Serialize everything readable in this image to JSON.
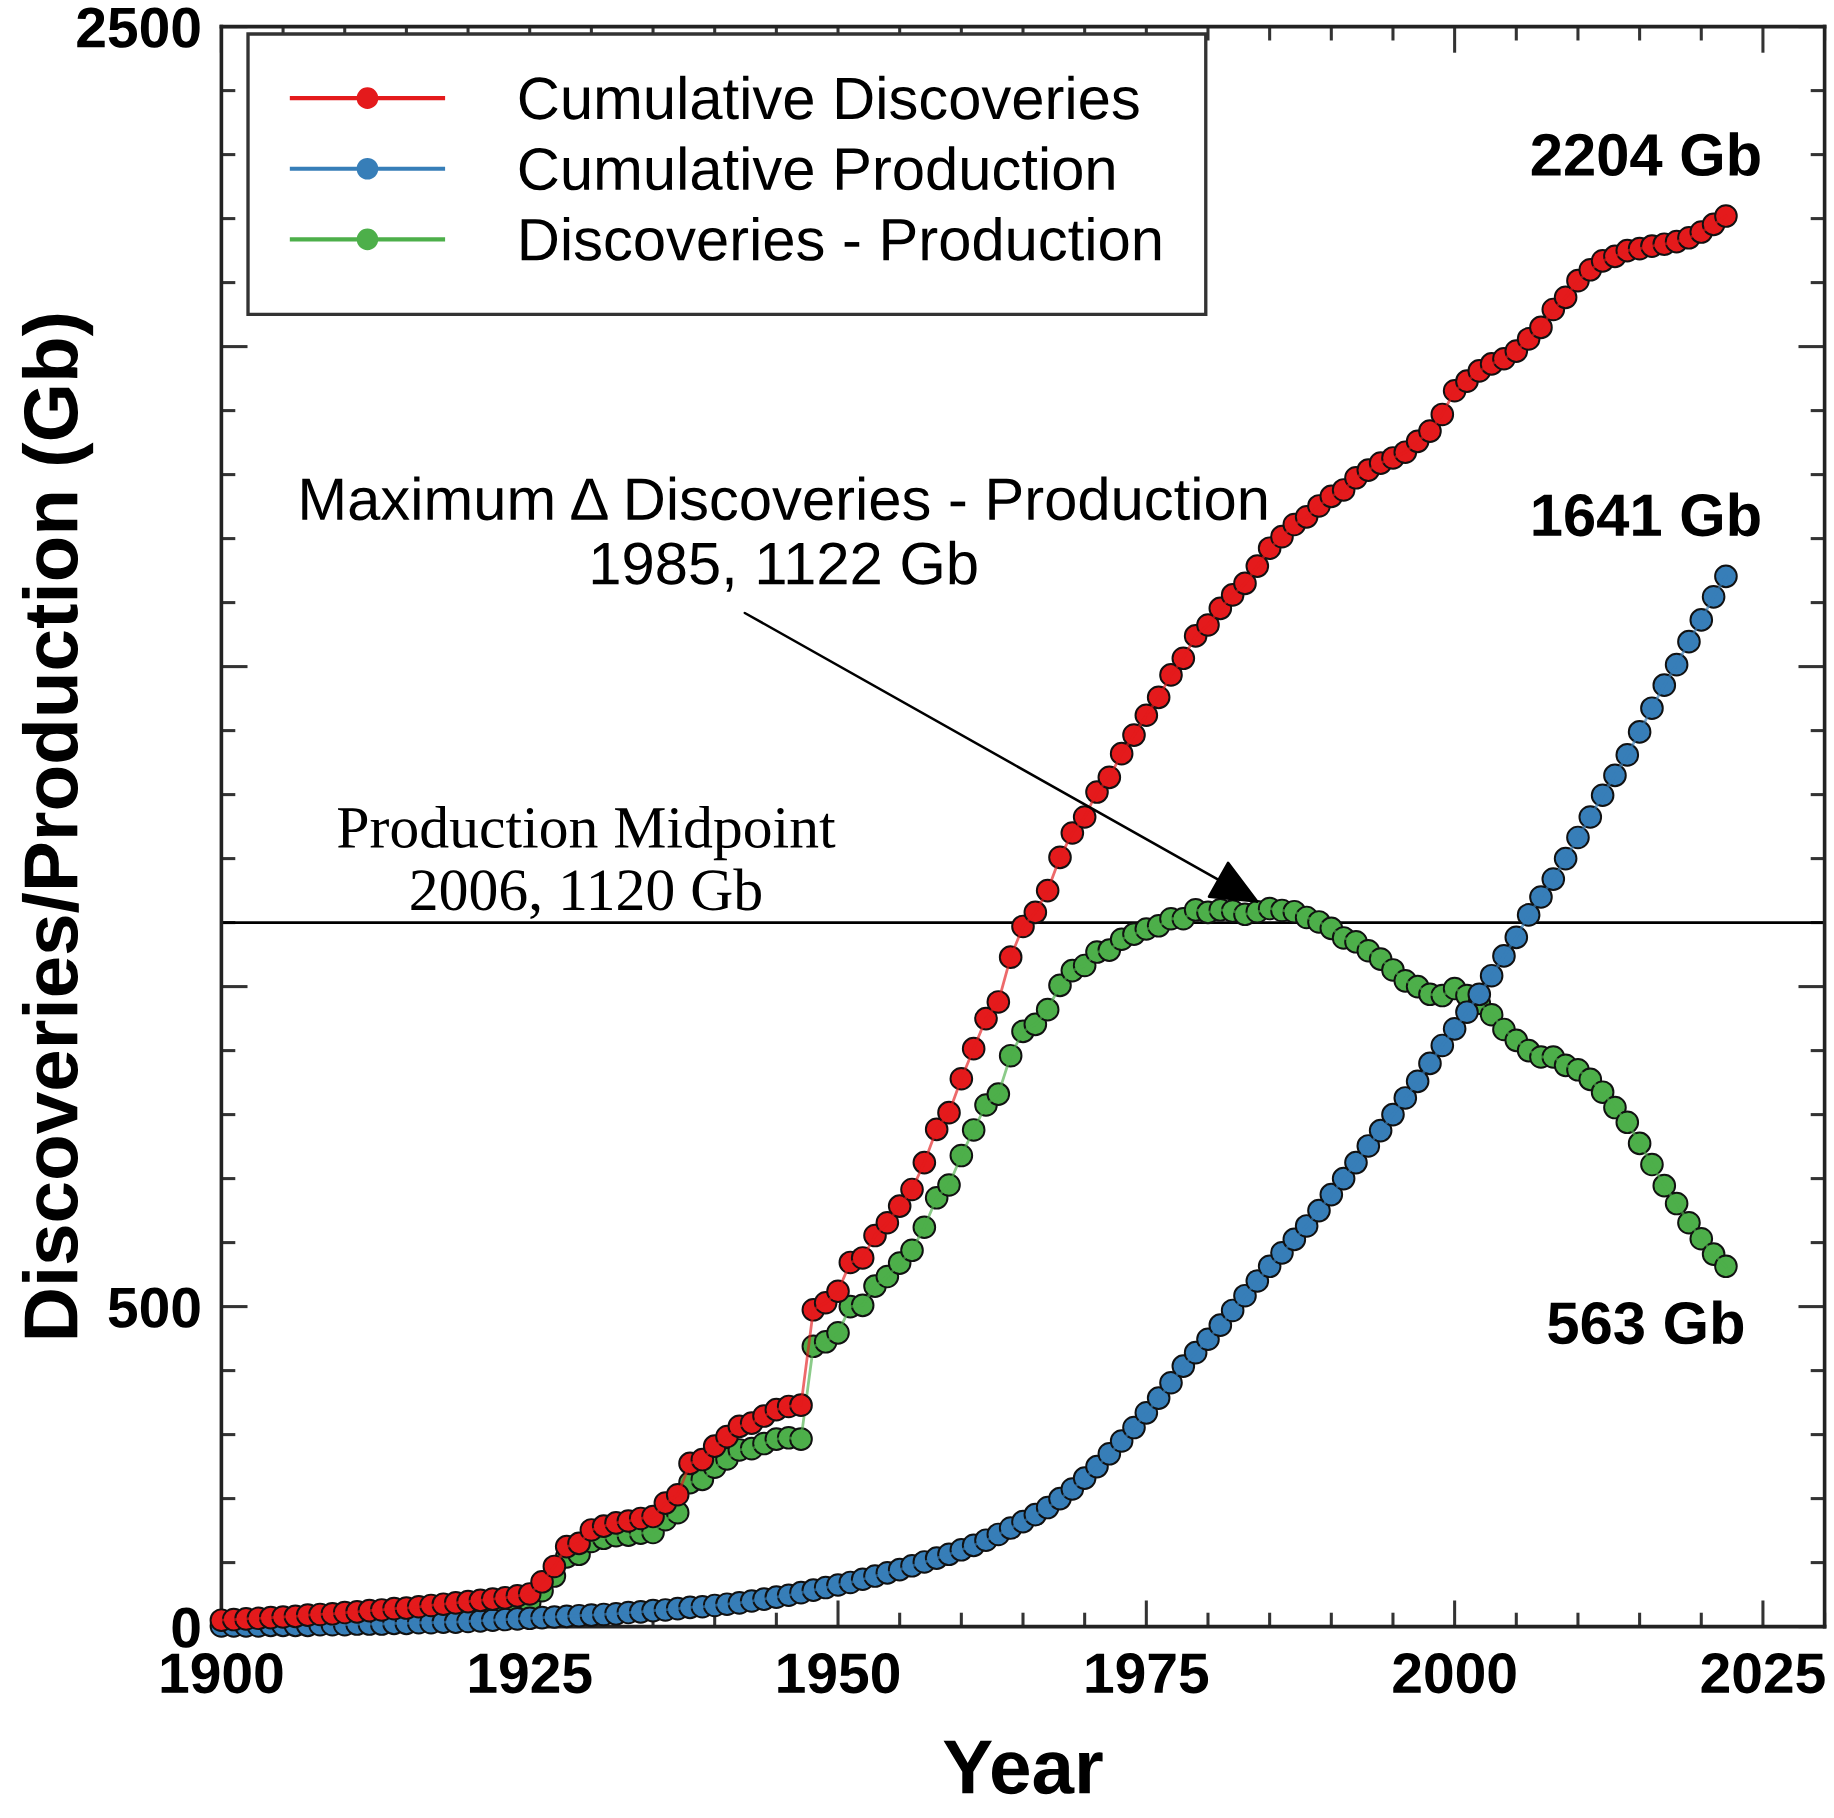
{
  "chart_data": {
    "type": "line",
    "xlabel": "Year",
    "ylabel": "Discoveries/Production (Gb)",
    "xlim": [
      1900,
      2030
    ],
    "xticks": [
      1900,
      1925,
      1950,
      1975,
      2000,
      2025
    ],
    "ylim": [
      0,
      2500
    ],
    "yticks": [
      0,
      500,
      {
        "value": 1000,
        "label": null
      },
      {
        "value": 1500,
        "label": null
      },
      {
        "value": 2000,
        "label": null
      },
      2500
    ],
    "legend": "top left",
    "marker": "circle",
    "line_style": "solid",
    "x": [
      1900,
      1901,
      1902,
      1903,
      1904,
      1905,
      1906,
      1907,
      1908,
      1909,
      1910,
      1911,
      1912,
      1913,
      1914,
      1915,
      1916,
      1917,
      1918,
      1919,
      1920,
      1921,
      1922,
      1923,
      1924,
      1925,
      1926,
      1927,
      1928,
      1929,
      1930,
      1931,
      1932,
      1933,
      1934,
      1935,
      1936,
      1937,
      1938,
      1939,
      1940,
      1941,
      1942,
      1943,
      1944,
      1945,
      1946,
      1947,
      1948,
      1949,
      1950,
      1951,
      1952,
      1953,
      1954,
      1955,
      1956,
      1957,
      1958,
      1959,
      1960,
      1961,
      1962,
      1963,
      1964,
      1965,
      1966,
      1967,
      1968,
      1969,
      1970,
      1971,
      1972,
      1973,
      1974,
      1975,
      1976,
      1977,
      1978,
      1979,
      1980,
      1981,
      1982,
      1983,
      1984,
      1985,
      1986,
      1987,
      1988,
      1989,
      1990,
      1991,
      1992,
      1993,
      1994,
      1995,
      1996,
      1997,
      1998,
      1999,
      2000,
      2001,
      2002,
      2003,
      2004,
      2005,
      2006,
      2007,
      2008,
      2009,
      2010,
      2011,
      2012,
      2013,
      2014,
      2015,
      2016,
      2017,
      2018,
      2019,
      2020,
      2021,
      2022
    ],
    "series": [
      {
        "name": "Cumulative Discoveries",
        "color": "#e41a1c",
        "values": [
          10,
          11,
          12,
          13,
          14,
          15,
          16,
          18,
          19,
          20,
          22,
          23,
          25,
          26,
          28,
          29,
          31,
          33,
          35,
          37,
          39,
          41,
          43,
          45,
          48,
          51,
          70,
          94,
          125,
          130,
          151,
          157,
          162,
          165,
          169,
          172,
          193,
          206,
          255,
          261,
          282,
          297,
          313,
          318,
          329,
          339,
          344,
          346,
          495,
          506,
          524,
          569,
          576,
          611,
          631,
          657,
          683,
          725,
          777,
          803,
          856,
          903,
          950,
          976,
          1046,
          1094,
          1116,
          1150,
          1202,
          1240,
          1265,
          1304,
          1327,
          1364,
          1393,
          1424,
          1452,
          1487,
          1513,
          1548,
          1565,
          1591,
          1612,
          1630,
          1657,
          1685,
          1703,
          1722,
          1734,
          1751,
          1766,
          1776,
          1795,
          1807,
          1818,
          1826,
          1835,
          1852,
          1868,
          1894,
          1931,
          1946,
          1962,
          1973,
          1981,
          1993,
          2012,
          2030,
          2058,
          2077,
          2103,
          2120,
          2134,
          2141,
          2150,
          2153,
          2157,
          2160,
          2164,
          2170,
          2179,
          2191,
          2204
        ],
        "value_labels": [
          null,
          null,
          null,
          null,
          null,
          null,
          null,
          null,
          null,
          null,
          null,
          null,
          null,
          null,
          null,
          null,
          null,
          null,
          null,
          null,
          null,
          null,
          null,
          null,
          null,
          null,
          null,
          null,
          null,
          null,
          null,
          null,
          null,
          null,
          null,
          null,
          null,
          null,
          null,
          null,
          null,
          null,
          null,
          null,
          null,
          null,
          null,
          null,
          null,
          null,
          null,
          null,
          null,
          null,
          null,
          null,
          null,
          null,
          null,
          null,
          null,
          null,
          null,
          null,
          null,
          null,
          null,
          null,
          null,
          null,
          null,
          null,
          null,
          null,
          null,
          null,
          null,
          null,
          null,
          null,
          null,
          null,
          null,
          null,
          null,
          null,
          null,
          null,
          null,
          null,
          null,
          null,
          null,
          null,
          null,
          null,
          null,
          null,
          null,
          null,
          null,
          null,
          null,
          null,
          null,
          null,
          null,
          null,
          null,
          null,
          null,
          null,
          null,
          null,
          null,
          null,
          null,
          null,
          null,
          null,
          null,
          null,
          "2204 Gb"
        ]
      },
      {
        "name": "Cumulative Production",
        "color": "#377eb8",
        "values": [
          1,
          1,
          1,
          1,
          2,
          2,
          2,
          2,
          3,
          3,
          3,
          4,
          4,
          4,
          5,
          5,
          6,
          6,
          7,
          7,
          8,
          9,
          10,
          11,
          12,
          13,
          14,
          15,
          16,
          17,
          18,
          19,
          20,
          22,
          23,
          25,
          26,
          28,
          30,
          31,
          33,
          35,
          37,
          40,
          43,
          46,
          49,
          53,
          57,
          61,
          65,
          69,
          74,
          79,
          84,
          89,
          95,
          101,
          107,
          113,
          120,
          127,
          135,
          144,
          154,
          164,
          175,
          186,
          200,
          215,
          232,
          250,
          270,
          290,
          311,
          334,
          357,
          381,
          407,
          428,
          449,
          471,
          494,
          517,
          540,
          563,
          584,
          605,
          626,
          650,
          675,
          700,
          725,
          751,
          775,
          800,
          826,
          852,
          880,
          908,
          934,
          960,
          988,
          1017,
          1048,
          1077,
          1112,
          1140,
          1168,
          1200,
          1233,
          1265,
          1299,
          1330,
          1362,
          1398,
          1435,
          1471,
          1503,
          1539,
          1573,
          1609,
          1641
        ],
        "value_labels": [
          null,
          null,
          null,
          null,
          null,
          null,
          null,
          null,
          null,
          null,
          null,
          null,
          null,
          null,
          null,
          null,
          null,
          null,
          null,
          null,
          null,
          null,
          null,
          null,
          null,
          null,
          null,
          null,
          null,
          null,
          null,
          null,
          null,
          null,
          null,
          null,
          null,
          null,
          null,
          null,
          null,
          null,
          null,
          null,
          null,
          null,
          null,
          null,
          null,
          null,
          null,
          null,
          null,
          null,
          null,
          null,
          null,
          null,
          null,
          null,
          null,
          null,
          null,
          null,
          null,
          null,
          null,
          null,
          null,
          null,
          null,
          null,
          null,
          null,
          null,
          null,
          null,
          null,
          null,
          null,
          null,
          null,
          null,
          null,
          null,
          null,
          null,
          null,
          null,
          null,
          null,
          null,
          null,
          null,
          null,
          null,
          null,
          null,
          null,
          null,
          null,
          null,
          null,
          null,
          null,
          null,
          null,
          null,
          null,
          null,
          null,
          null,
          null,
          null,
          null,
          null,
          null,
          null,
          null,
          null,
          null,
          null,
          "1641 Gb"
        ]
      },
      {
        "name": "Discoveries - Production",
        "color": "#4daf4a",
        "values": [
          null,
          null,
          null,
          null,
          null,
          null,
          null,
          null,
          null,
          null,
          null,
          null,
          null,
          null,
          null,
          null,
          null,
          null,
          null,
          null,
          null,
          null,
          33,
          34,
          36,
          38,
          56,
          79,
          109,
          113,
          133,
          138,
          142,
          143,
          146,
          147,
          167,
          178,
          225,
          230,
          249,
          262,
          276,
          278,
          286,
          293,
          295,
          293,
          438,
          445,
          459,
          500,
          502,
          532,
          547,
          568,
          588,
          624,
          670,
          690,
          736,
          776,
          815,
          832,
          892,
          930,
          941,
          964,
          1002,
          1025,
          1033,
          1054,
          1057,
          1074,
          1082,
          1090,
          1095,
          1106,
          1106,
          1120,
          1116,
          1120,
          1118,
          1113,
          1117,
          1122,
          1119,
          1117,
          1108,
          1101,
          1091,
          1076,
          1070,
          1056,
          1043,
          1026,
          1009,
          1000,
          988,
          986,
          997,
          986,
          974,
          956,
          933,
          916,
          900,
          890,
          890,
          877,
          870,
          855,
          835,
          811,
          788,
          755,
          722,
          689,
          661,
          631,
          606,
          582,
          563
        ],
        "value_labels": [
          null,
          null,
          null,
          null,
          null,
          null,
          null,
          null,
          null,
          null,
          null,
          null,
          null,
          null,
          null,
          null,
          null,
          null,
          null,
          null,
          null,
          null,
          null,
          null,
          null,
          null,
          null,
          null,
          null,
          null,
          null,
          null,
          null,
          null,
          null,
          null,
          null,
          null,
          null,
          null,
          null,
          null,
          null,
          null,
          null,
          null,
          null,
          null,
          null,
          null,
          null,
          null,
          null,
          null,
          null,
          null,
          null,
          null,
          null,
          null,
          null,
          null,
          null,
          null,
          null,
          null,
          null,
          null,
          null,
          null,
          null,
          null,
          null,
          null,
          null,
          null,
          null,
          null,
          null,
          null,
          null,
          null,
          null,
          null,
          null,
          null,
          null,
          null,
          null,
          null,
          null,
          null,
          null,
          null,
          null,
          null,
          null,
          null,
          null,
          null,
          null,
          null,
          null,
          null,
          null,
          null,
          null,
          null,
          null,
          null,
          null,
          null,
          null,
          null,
          null,
          null,
          null,
          null,
          null,
          null,
          null,
          null,
          "563 Gb"
        ]
      }
    ],
    "ref_lines": [
      {
        "axis": "y",
        "value": 1100,
        "label": "Production Midpoint\n2006, 1120 Gb",
        "color": "#000000"
      }
    ],
    "annotations": [
      {
        "text": "Maximum Δ Discoveries - Production\n1985, 1122 Gb",
        "x": 1985,
        "y": 1122
      }
    ]
  }
}
